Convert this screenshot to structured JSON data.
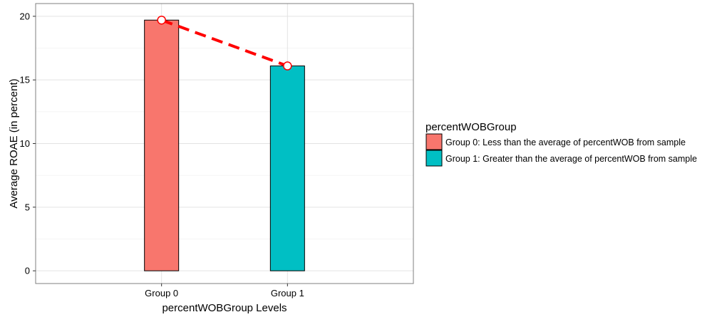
{
  "chart_data": {
    "type": "bar",
    "title": "",
    "xlabel": "percentWOBGroup Levels",
    "ylabel": "Average ROAE (in percent)",
    "ylim": [
      -1.0,
      21.0
    ],
    "yticks": [
      0,
      5,
      10,
      15,
      20
    ],
    "categories": [
      "Group 0",
      "Group 1"
    ],
    "values": [
      19.7,
      16.1
    ],
    "colors": [
      "#F8766D",
      "#00BFC4"
    ],
    "grid": true,
    "line_overlay": {
      "style": "dashed",
      "color": "#ff0000",
      "marker": "open-circle"
    },
    "legend": {
      "title": "percentWOBGroup",
      "placement": "right",
      "items": [
        {
          "label": "Group 0: Less than the average of percentWOB from sample",
          "color": "#F8766D"
        },
        {
          "label": "Group 1: Greater than the average of percentWOB from sample",
          "color": "#00BFC4"
        }
      ]
    }
  }
}
